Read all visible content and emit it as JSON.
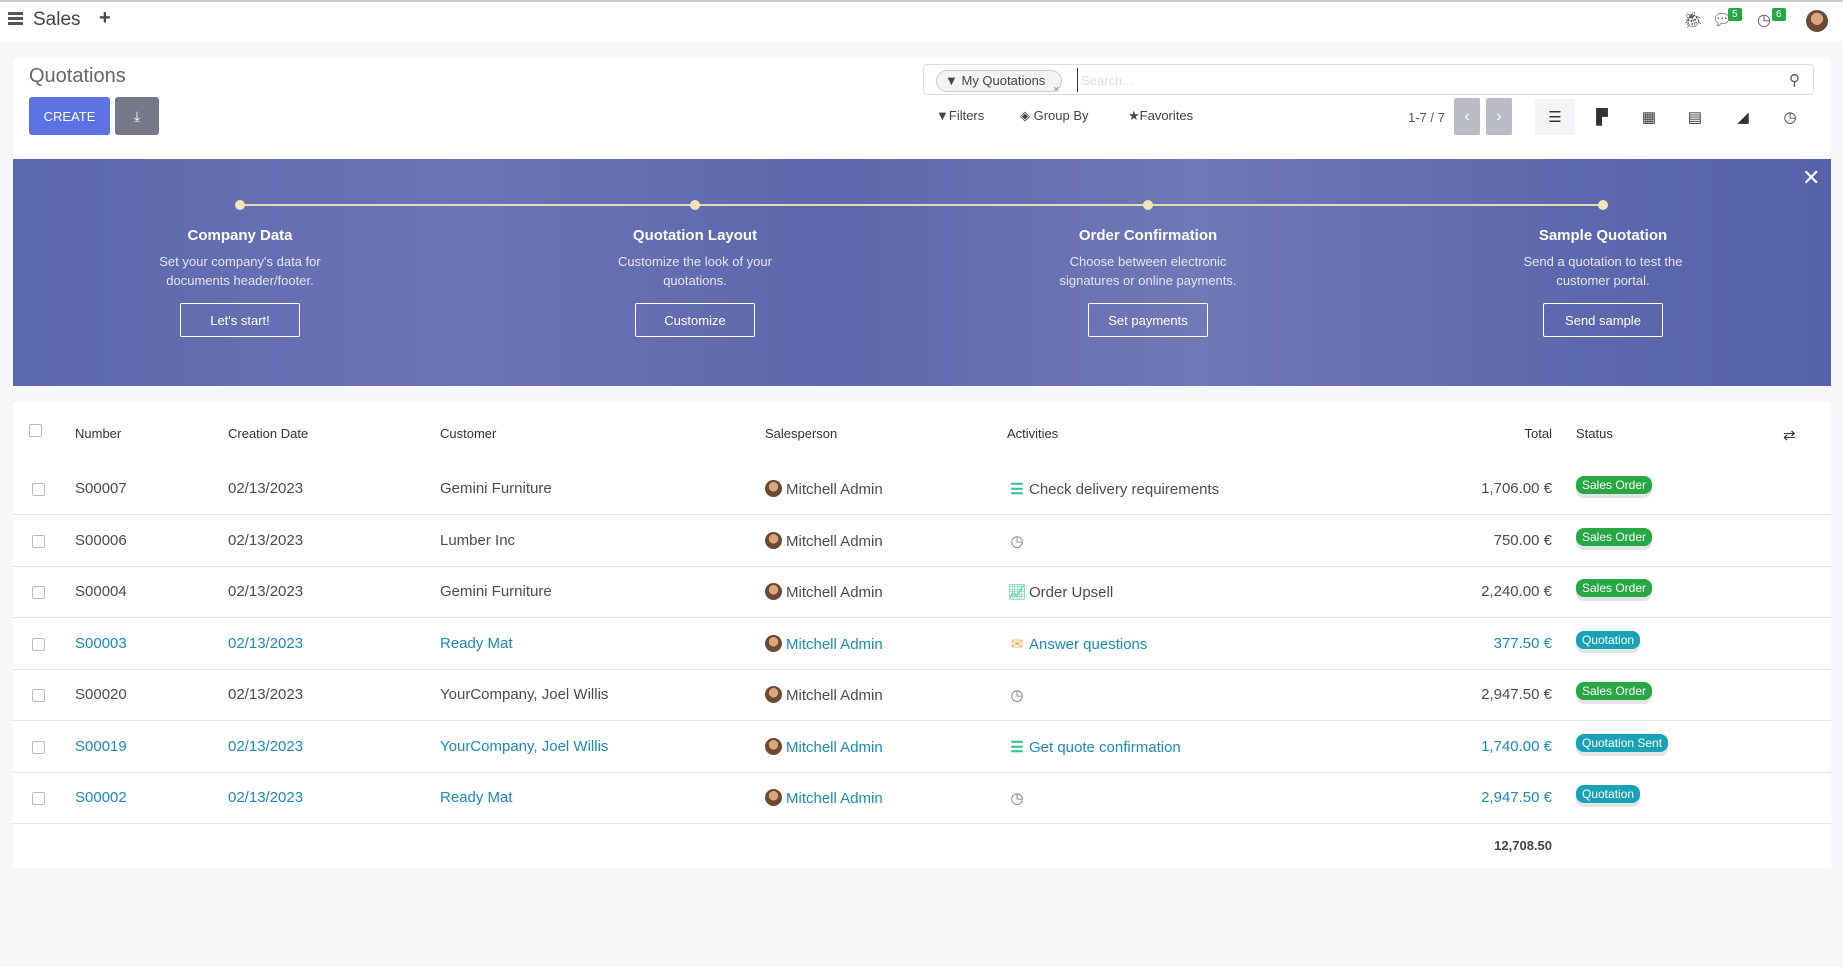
{
  "topbar": {
    "app": "Sales",
    "plus": "+",
    "messages_count": "5",
    "activities_count": "6"
  },
  "control": {
    "title": "Quotations",
    "create": "CREATE",
    "search_placeholder": "Search...",
    "facet": "My Quotations",
    "filters": "Filters",
    "group_by": "Group By",
    "favorites": "Favorites",
    "pager": "1-7 / 7"
  },
  "views": [
    "list",
    "kanban",
    "calendar",
    "pivot",
    "graph",
    "activity"
  ],
  "banner": {
    "steps": [
      {
        "title": "Company Data",
        "desc1": "Set your company's data for",
        "desc2": "documents header/footer.",
        "button": "Let's start!"
      },
      {
        "title": "Quotation Layout",
        "desc1": "Customize the look of your",
        "desc2": "quotations.",
        "button": "Customize"
      },
      {
        "title": "Order Confirmation",
        "desc1": "Choose between electronic",
        "desc2": "signatures or online payments.",
        "button": "Set payments"
      },
      {
        "title": "Sample Quotation",
        "desc1": "Send a quotation to test the",
        "desc2": "customer portal.",
        "button": "Send sample"
      }
    ]
  },
  "table": {
    "headers": {
      "number": "Number",
      "date": "Creation Date",
      "customer": "Customer",
      "salesperson": "Salesperson",
      "activities": "Activities",
      "total": "Total",
      "status": "Status"
    },
    "rows": [
      {
        "number": "S00007",
        "date": "02/13/2023",
        "customer": "Gemini Furniture",
        "salesperson": "Mitchell Admin",
        "activity": "Check delivery requirements",
        "activity_icon": "tasks-icon",
        "total": "1,706.00 €",
        "status": "Sales Order",
        "highlight": false
      },
      {
        "number": "S00006",
        "date": "02/13/2023",
        "customer": "Lumber Inc",
        "salesperson": "Mitchell Admin",
        "activity": "",
        "activity_icon": "clock-icon",
        "total": "750.00 €",
        "status": "Sales Order",
        "highlight": false
      },
      {
        "number": "S00004",
        "date": "02/13/2023",
        "customer": "Gemini Furniture",
        "salesperson": "Mitchell Admin",
        "activity": "Order Upsell",
        "activity_icon": "chart-up-icon",
        "total": "2,240.00 €",
        "status": "Sales Order",
        "highlight": false
      },
      {
        "number": "S00003",
        "date": "02/13/2023",
        "customer": "Ready Mat",
        "salesperson": "Mitchell Admin",
        "activity": "Answer questions",
        "activity_icon": "envelope-icon",
        "total": "377.50 €",
        "status": "Quotation",
        "highlight": true
      },
      {
        "number": "S00020",
        "date": "02/13/2023",
        "customer": "YourCompany, Joel Willis",
        "salesperson": "Mitchell Admin",
        "activity": "",
        "activity_icon": "clock-icon",
        "total": "2,947.50 €",
        "status": "Sales Order",
        "highlight": false
      },
      {
        "number": "S00019",
        "date": "02/13/2023",
        "customer": "YourCompany, Joel Willis",
        "salesperson": "Mitchell Admin",
        "activity": "Get quote confirmation",
        "activity_icon": "tasks-icon",
        "total": "1,740.00 €",
        "status": "Quotation Sent",
        "highlight": true
      },
      {
        "number": "S00002",
        "date": "02/13/2023",
        "customer": "Ready Mat",
        "salesperson": "Mitchell Admin",
        "activity": "",
        "activity_icon": "clock-icon",
        "total": "2,947.50 €",
        "status": "Quotation",
        "highlight": true
      }
    ],
    "sum_total": "12,708.50"
  },
  "colors": {
    "primary": "#5a72e3",
    "link": "#1b8ab8",
    "sales_order": "#28a745",
    "quotation": "#17a2b8"
  }
}
